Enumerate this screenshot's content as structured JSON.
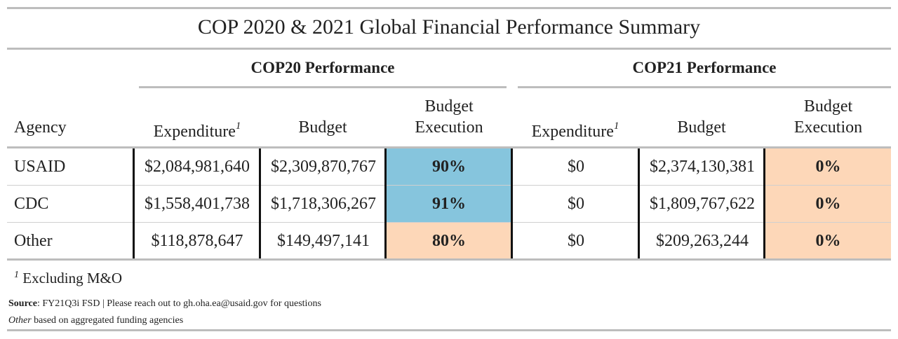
{
  "title": "COP 2020 & 2021 Global Financial Performance Summary",
  "groups": {
    "cop20": "COP20 Performance",
    "cop21": "COP21 Performance"
  },
  "headers": {
    "agency": "Agency",
    "expenditure": "Expenditure",
    "expenditure_note_marker": "1",
    "budget": "Budget",
    "budget_execution_line1": "Budget",
    "budget_execution_line2": "Execution"
  },
  "rows": [
    {
      "agency": "USAID",
      "cop20_expenditure": "$2,084,981,640",
      "cop20_budget": "$2,309,870,767",
      "cop20_execution": "90%",
      "cop21_expenditure": "$0",
      "cop21_budget": "$2,374,130,381",
      "cop21_execution": "0%"
    },
    {
      "agency": "CDC",
      "cop20_expenditure": "$1,558,401,738",
      "cop20_budget": "$1,718,306,267",
      "cop20_execution": "91%",
      "cop21_expenditure": "$0",
      "cop21_budget": "$1,809,767,622",
      "cop21_execution": "0%"
    },
    {
      "agency": "Other",
      "cop20_expenditure": "$118,878,647",
      "cop20_budget": "$149,497,141",
      "cop20_execution": "80%",
      "cop21_expenditure": "$0",
      "cop21_budget": "$209,263,244",
      "cop21_execution": "0%"
    }
  ],
  "colors": {
    "high_execution": "#86c5dd",
    "low_execution": "#fdd7b8",
    "rule": "#bdbdbd"
  },
  "footnotes": {
    "marker": "1",
    "excluding": "Excluding M&O",
    "source_label": "Source",
    "source_text": ": FY21Q3i FSD | Please reach out to gh.oha.ea@usaid.gov for questions",
    "other_label": "Other",
    "other_text": " based on aggregated funding agencies"
  }
}
